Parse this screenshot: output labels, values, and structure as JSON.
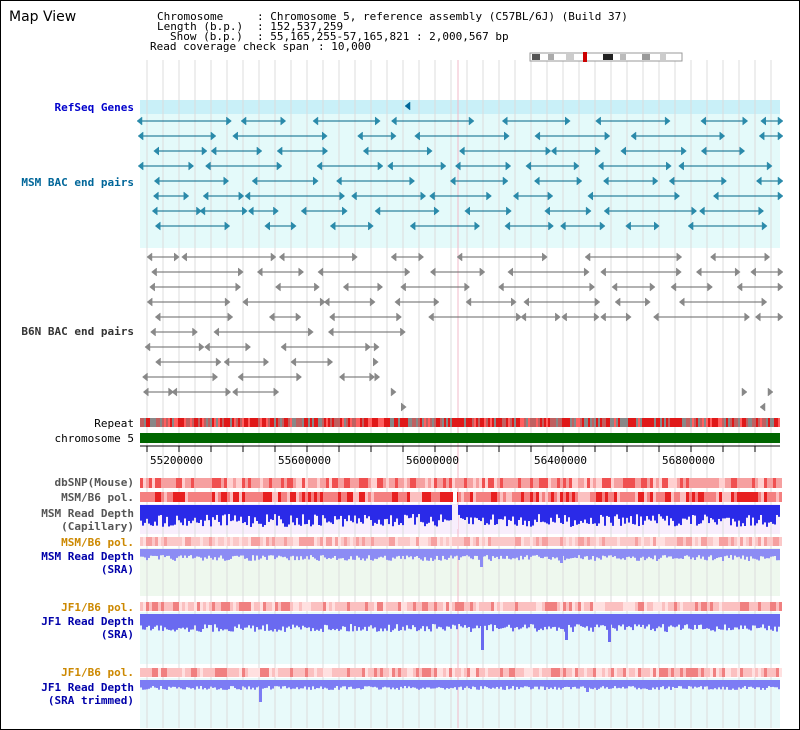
{
  "title": "Map View",
  "info": {
    "chromosome_key": "Chromosome",
    "chromosome_val": ": Chromosome 5, reference assembly (C57BL/6J) (Build 37)",
    "length_key": "Length (b.p.)",
    "length_val": ": 152,537,259",
    "show_key": "Show (b.p.)",
    "show_val": ": 55,165,255-57,165,821 : 2,000,567 bp",
    "coverage_key": "Read coverage check span",
    "coverage_val": ": 10,000"
  },
  "tracks": {
    "refseq": "RefSeq Genes",
    "msm_bac": "MSM BAC end pairs",
    "b6n_bac": "B6N BAC end pairs",
    "repeat": "Repeat",
    "chromosome": "chromosome 5",
    "dbsnp": "dbSNP(Mouse)",
    "msm_pol": "MSM/B6 pol.",
    "msm_cap_1": "MSM Read Depth",
    "msm_cap_2": "(Capillary)",
    "msm_pol2": "MSM/B6 pol.",
    "msm_sra_1": "MSM Read Depth",
    "msm_sra_2": "(SRA)",
    "jf1_pol": "JF1/B6 pol.",
    "jf1_sra_1": "JF1 Read Depth",
    "jf1_sra_2": "(SRA)",
    "jf1_pol2": "JF1/B6 pol.",
    "jf1_trim_1": "JF1 Read Depth",
    "jf1_trim_2": "(SRA trimmed)"
  },
  "axis_ticks": [
    "55200000",
    "55600000",
    "56000000",
    "56400000",
    "56800000"
  ],
  "colors": {
    "refseq_label": "#0000cc",
    "msm_label": "#006699",
    "b6n_label": "#333333",
    "msm_pol_label": "#cc8800",
    "jf1_pol_label": "#cc8800",
    "depth_label": "#0000aa",
    "chromosome_bar": "#006600",
    "refseq_bg": "#e4fafa"
  }
}
